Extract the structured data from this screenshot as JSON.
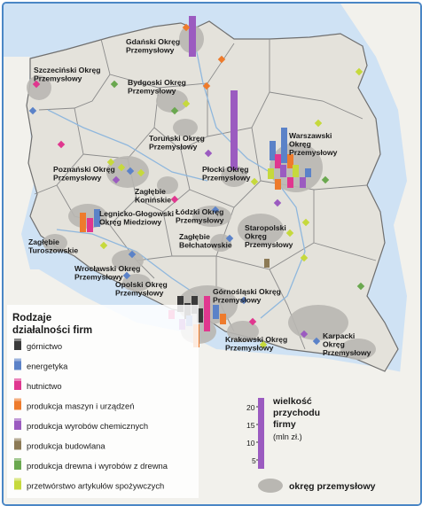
{
  "map": {
    "colors": {
      "sea": "#cfe2f4",
      "land_poland": "#e4e2db",
      "land_neighbors": "#f2f1ec",
      "industrial_area": "#b9b7b2",
      "border": "#6f6f6f"
    },
    "regions": [
      {
        "label": "Gdański Okręg\nPrzemysłowy"
      },
      {
        "label": "Szczeciński Okręg\nPrzemysłowy"
      },
      {
        "label": "Bydgoski Okręg\nPrzemysłowy"
      },
      {
        "label": "Toruński Okręg\nPrzemysłowy"
      },
      {
        "label": "Warszawski\nOkręg\nPrzemysłowy"
      },
      {
        "label": "Poznański Okręg\nPrzemysłowy"
      },
      {
        "label": "Płocki Okręg\nPrzemysłowy"
      },
      {
        "label": "Zagłębie\nKonińskie"
      },
      {
        "label": "Legnicko-Głogowski\nOkręg Miedziowy"
      },
      {
        "label": "Łódzki Okręg\nPrzemysłowy"
      },
      {
        "label": "Zagłębie\nTuroszowskie"
      },
      {
        "label": "Staropolski\nOkręg\nPrzemysłowy"
      },
      {
        "label": "Zagłębie\nBełchatowskie"
      },
      {
        "label": "Wrocławski Okręg\nPrzemysłowy"
      },
      {
        "label": "Opolski Okręg\nPrzemysłowy"
      },
      {
        "label": "Górnośląski Okręg\nPrzemysłowy"
      },
      {
        "label": "Karpacki\nOkręg\nPrzemysłowy"
      },
      {
        "label": "Krakowski Okręg\nPrzemysłowy"
      }
    ]
  },
  "legend": {
    "title_line1": "Rodzaje",
    "title_line2": "działalności firm",
    "items": [
      {
        "label": "górnictwo",
        "color": "#3a3a3a"
      },
      {
        "label": "energetyka",
        "color": "#5b82c8"
      },
      {
        "label": "hutnictwo",
        "color": "#e0378f"
      },
      {
        "label": "produkcja maszyn i urządzeń",
        "color": "#ee7b2c"
      },
      {
        "label": "produkcja wyrobów chemicznych",
        "color": "#9b5bc0"
      },
      {
        "label": "produkcja budowlana",
        "color": "#8c7a55"
      },
      {
        "label": "produkcja drewna i wyrobów z drewna",
        "color": "#6aa84f"
      },
      {
        "label": "przetwórstwo artykułów spożywczych",
        "color": "#c6d93c"
      }
    ]
  },
  "scale": {
    "title_line1": "wielkość",
    "title_line2": "przychodu",
    "title_line3": "firmy",
    "unit": "(mln zł.)",
    "ticks": [
      "20",
      "15",
      "10",
      "5"
    ],
    "bar_color": "#9b5bc0"
  },
  "area_legend": {
    "label": "okręg przemysłowy"
  }
}
